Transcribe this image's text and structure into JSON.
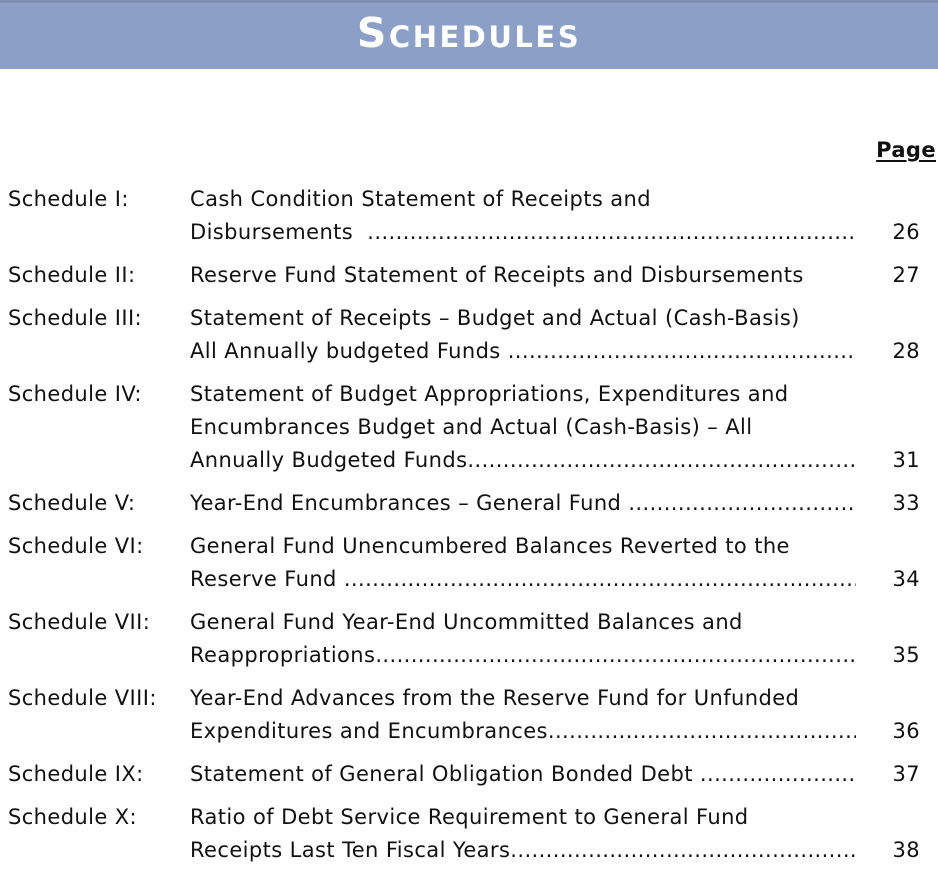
{
  "banner": {
    "title": "Schedules",
    "bg_color": "#8c9fc6",
    "border_color": "#7d8eb3",
    "text_color": "#ffffff"
  },
  "toc": {
    "page_column_label": "Page",
    "leader_dots": "..........................................................................................................................................................",
    "entries": [
      {
        "label": "Schedule I:",
        "lines": [
          "Cash Condition Statement of Receipts and"
        ],
        "last_line": "Disbursements  ",
        "page": "26"
      },
      {
        "label": "Schedule II:",
        "lines": [],
        "last_line": "Reserve Fund Statement of Receipts and Disbursements",
        "page": "27"
      },
      {
        "label": "Schedule III:",
        "lines": [
          "Statement of Receipts – Budget and Actual (Cash-Basis)"
        ],
        "last_line": "All Annually budgeted Funds ",
        "page": "28"
      },
      {
        "label": "Schedule IV:",
        "lines": [
          "Statement of Budget Appropriations, Expenditures and",
          "Encumbrances Budget and Actual (Cash-Basis) – All"
        ],
        "last_line": "Annually Budgeted Funds",
        "page": "31"
      },
      {
        "label": "Schedule V:",
        "lines": [],
        "last_line": "Year-End Encumbrances – General Fund ",
        "page": "33"
      },
      {
        "label": "Schedule VI:",
        "lines": [
          "General Fund Unencumbered Balances Reverted to the"
        ],
        "last_line": "Reserve Fund ",
        "page": "34"
      },
      {
        "label": "Schedule VII:",
        "lines": [
          "General Fund Year-End Uncommitted Balances and"
        ],
        "last_line": "Reappropriations",
        "page": "35"
      },
      {
        "label": "Schedule VIII:",
        "lines": [
          "Year-End Advances from the Reserve Fund for Unfunded"
        ],
        "last_line": "Expenditures and Encumbrances",
        "page": "36"
      },
      {
        "label": "Schedule IX:",
        "lines": [],
        "last_line": "Statement of General Obligation Bonded Debt ",
        "page": "37"
      },
      {
        "label": "Schedule X:",
        "lines": [
          "Ratio of Debt Service Requirement to General Fund"
        ],
        "last_line": "Receipts Last Ten Fiscal Years",
        "page": "38"
      }
    ]
  }
}
